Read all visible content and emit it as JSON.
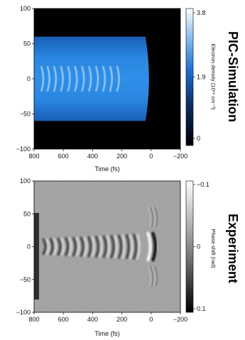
{
  "chart_data": [
    {
      "type": "heatmap",
      "side_label": "PIC-Simulation",
      "xlabel": "Time (fs)",
      "ylabel": "",
      "xlim": [
        800,
        -200
      ],
      "ylim": [
        -100,
        100
      ],
      "x_ticks": [
        "800",
        "600",
        "400",
        "200",
        "0",
        "−200"
      ],
      "y_ticks": [
        "100",
        "50",
        "0",
        "−50",
        "−100"
      ],
      "colorbar": {
        "label": "Electron density (10¹⁹ cm⁻³)",
        "ticks": [
          "3.8",
          "1.9",
          "0"
        ],
        "range": [
          0,
          3.8
        ],
        "colors": [
          "#000000",
          "#0d2f66",
          "#1e6fd0",
          "#8fc0f0",
          "#ffffff"
        ]
      },
      "plasma_channel": {
        "x_range": [
          800,
          0
        ],
        "y_range": [
          -60,
          60
        ],
        "density_level": 1.9
      },
      "wave_fronts_x": [
        742,
        700,
        655,
        608,
        560,
        512,
        464,
        416,
        368,
        320,
        272,
        224
      ],
      "colors": {
        "background": "#000000",
        "plasma": "#1e78d6",
        "fronts": "#cde4ff"
      }
    },
    {
      "type": "heatmap",
      "side_label": "Experiment",
      "xlabel": "Time (fs)",
      "ylabel": "",
      "xlim": [
        800,
        -200
      ],
      "ylim": [
        -100,
        100
      ],
      "x_ticks": [
        "800",
        "600",
        "400",
        "200",
        "0",
        "−200"
      ],
      "y_ticks": [
        "100",
        "50",
        "0",
        "−50",
        "−100"
      ],
      "colorbar": {
        "label": "Phase shift (rad)",
        "ticks": [
          "−0.1",
          "0",
          "0.1"
        ],
        "range": [
          -0.1,
          0.1
        ],
        "colors": [
          "#ffffff",
          "#8a8a8a",
          "#000000"
        ]
      },
      "wave_fronts_x": [
        730,
        680,
        628,
        576,
        524,
        472,
        420,
        368,
        316,
        264,
        212,
        160,
        110
      ],
      "main_front_x": 10,
      "colors": {
        "background": "#9a9a9a"
      }
    }
  ]
}
